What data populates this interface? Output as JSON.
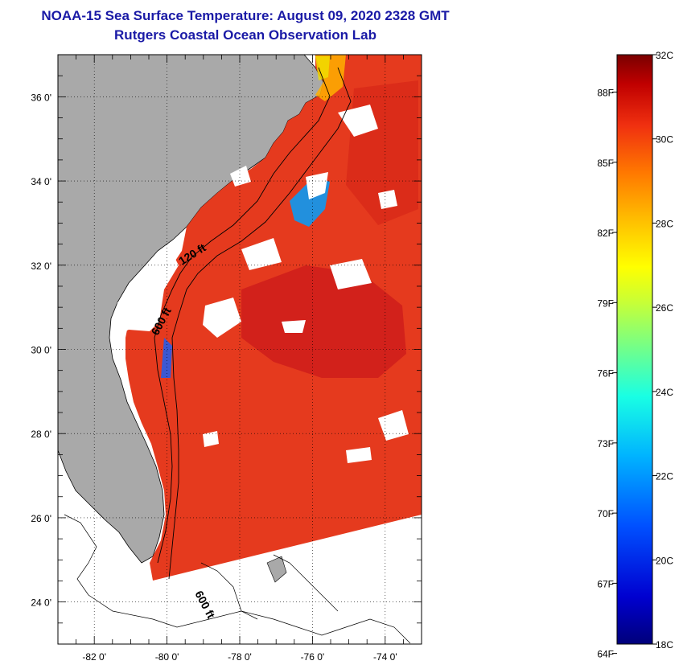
{
  "title": "NOAA-15 Sea Surface Temperature:  August 09, 2020 2328 GMT",
  "subtitle": "Rutgers Coastal Ocean Observation Lab",
  "map": {
    "lat_ticks": [
      {
        "value": 36,
        "label": "36 0'"
      },
      {
        "value": 34,
        "label": "34 0'"
      },
      {
        "value": 32,
        "label": "32 0'"
      },
      {
        "value": 30,
        "label": "30 0'"
      },
      {
        "value": 28,
        "label": "28 0'"
      },
      {
        "value": 26,
        "label": "26 0'"
      },
      {
        "value": 24,
        "label": "24 0'"
      }
    ],
    "lon_ticks": [
      {
        "value": -82,
        "label": "-82 0'"
      },
      {
        "value": -80,
        "label": "-80 0'"
      },
      {
        "value": -78,
        "label": "-78 0'"
      },
      {
        "value": -76,
        "label": "-76 0'"
      },
      {
        "value": -74,
        "label": "-74 0'"
      }
    ],
    "lat_range": [
      23.0,
      37.0
    ],
    "lon_range": [
      -83.0,
      -73.0
    ],
    "contour_labels": {
      "c120": "120 ft",
      "c600a": "600 ft",
      "c600b": "600 ft"
    },
    "colors": {
      "land": "#a9a9a9",
      "water": "#ffffff",
      "sst_warm": "#e8321e",
      "sst_hot": "#c40f0f"
    }
  },
  "colorbar": {
    "min_c": 18,
    "max_c": 32,
    "celsius_ticks": [
      {
        "value": 32,
        "label": "32C"
      },
      {
        "value": 30,
        "label": "30C"
      },
      {
        "value": 28,
        "label": "28C"
      },
      {
        "value": 26,
        "label": "26C"
      },
      {
        "value": 24,
        "label": "24C"
      },
      {
        "value": 22,
        "label": "22C"
      },
      {
        "value": 20,
        "label": "20C"
      },
      {
        "value": 18,
        "label": "18C"
      }
    ],
    "fahrenheit_ticks": [
      {
        "value": 88,
        "label": "88F"
      },
      {
        "value": 85,
        "label": "85F"
      },
      {
        "value": 82,
        "label": "82F"
      },
      {
        "value": 79,
        "label": "79F"
      },
      {
        "value": 76,
        "label": "76F"
      },
      {
        "value": 73,
        "label": "73F"
      },
      {
        "value": 70,
        "label": "70F"
      },
      {
        "value": 67,
        "label": "67F"
      },
      {
        "value": 64,
        "label": "64F"
      }
    ]
  }
}
